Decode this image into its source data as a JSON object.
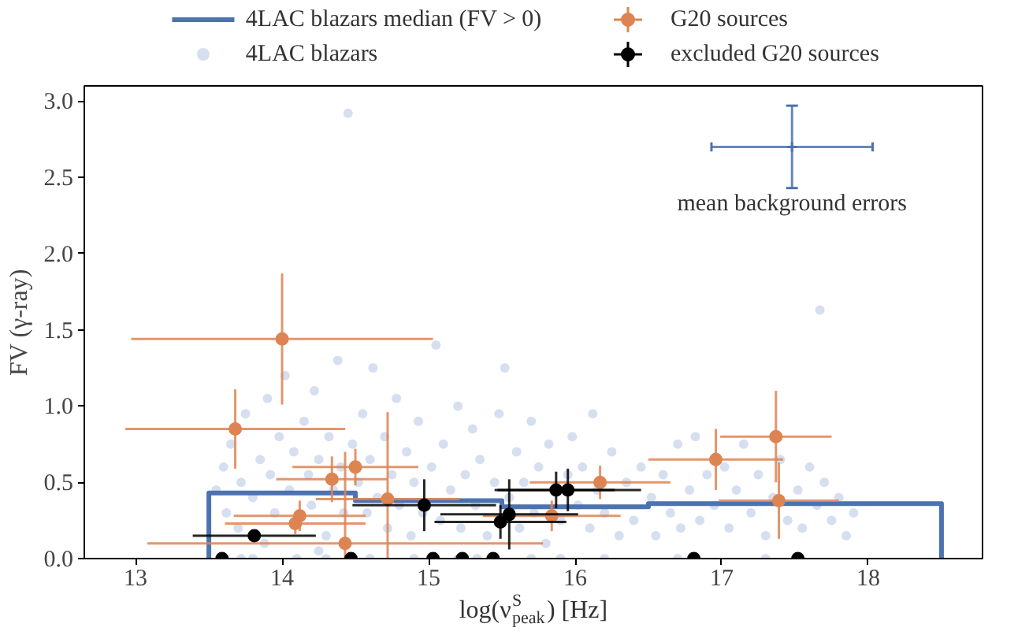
{
  "chart_data": {
    "type": "scatter",
    "xlabel": "log(ν$^{S}$$_{peak}$) [Hz]",
    "ylabel": "FV (γ-ray)",
    "xlim": [
      12.65,
      18.78
    ],
    "ylim": [
      0,
      3.1
    ],
    "xticks": [
      13,
      14,
      15,
      16,
      17,
      18
    ],
    "yticks": [
      {
        "value": 0,
        "label": "0.0"
      },
      {
        "value": 0.5,
        "label": "0.5"
      },
      {
        "value": 1,
        "label": "1.0"
      },
      {
        "value": 1.5,
        "label": "1.5"
      },
      {
        "value": 2,
        "label": "2.0"
      },
      {
        "value": 2.5,
        "label": "2.5"
      },
      {
        "value": 3,
        "label": "3.0"
      }
    ],
    "grid": false,
    "legend": "top",
    "series": [
      {
        "name": "4LAC blazars median (FV > 0)",
        "type": "line",
        "color": "#4c72b0",
        "x": [
          13.5,
          13.5,
          14.5,
          14.5,
          15.5,
          15.5,
          16.5,
          16.5,
          18.5,
          18.5
        ],
        "values": [
          0,
          0.43,
          0.43,
          0.38,
          0.38,
          0.34,
          0.34,
          0.36,
          0.36,
          0
        ]
      },
      {
        "name": "4LAC blazars",
        "marker": "circle",
        "color": "#c8d4ea",
        "x": [
          13.55,
          13.6,
          13.62,
          13.65,
          13.7,
          13.72,
          13.75,
          13.8,
          13.85,
          13.88,
          13.9,
          13.92,
          13.95,
          13.98,
          13.72,
          13.8,
          14.02,
          14.05,
          14.08,
          14.25,
          14.15,
          14.18,
          14.2,
          14.22,
          14.25,
          14.3,
          14.32,
          14.35,
          14.38,
          14.4,
          14.42,
          14.45,
          14.48,
          14.1,
          14.3,
          14.52,
          14.55,
          14.58,
          14.6,
          14.62,
          14.65,
          14.7,
          14.72,
          14.75,
          14.78,
          14.8,
          14.85,
          14.88,
          14.9,
          14.93,
          14.96,
          14.6,
          14.9,
          15.02,
          15.05,
          15.08,
          15.1,
          15.15,
          15.2,
          15.22,
          15.25,
          15.3,
          15.32,
          15.35,
          15.4,
          15.45,
          15.48,
          15.2,
          15.33,
          15.52,
          15.55,
          15.6,
          15.62,
          15.65,
          15.7,
          15.72,
          15.75,
          15.8,
          15.82,
          15.85,
          15.9,
          15.95,
          15.98,
          15.7,
          15.9,
          16.02,
          16.05,
          16.1,
          16.12,
          16.15,
          16.2,
          16.25,
          16.3,
          16.35,
          16.4,
          16.45,
          16.2,
          16.52,
          16.55,
          16.6,
          16.65,
          16.7,
          16.72,
          16.78,
          16.82,
          16.85,
          16.9,
          16.95,
          16.7,
          17.02,
          17.05,
          17.1,
          17.15,
          17.2,
          17.25,
          17.3,
          17.35,
          17.4,
          17.45,
          17.3,
          17.52,
          17.55,
          17.6,
          17.65,
          17.67,
          17.7,
          17.75,
          17.8,
          17.85,
          17.9
        ],
        "values": [
          0.45,
          0.6,
          0.3,
          0.75,
          0.2,
          0.5,
          0.95,
          0.4,
          0.65,
          0.1,
          1.05,
          0.55,
          0.3,
          0.8,
          0,
          0,
          1.2,
          0.45,
          0.7,
          0.05,
          0.9,
          0.55,
          0.35,
          1.1,
          0.65,
          0.15,
          0.8,
          0.45,
          1.3,
          0.6,
          0.3,
          2.92,
          0.75,
          0,
          0,
          0.5,
          0.95,
          0.3,
          0.65,
          1.25,
          0.4,
          0.8,
          0.2,
          0.55,
          1.05,
          0.35,
          0.7,
          0.15,
          0.5,
          0.9,
          0.3,
          0,
          0,
          0.6,
          1.4,
          0.25,
          0.75,
          0.45,
          1.0,
          0.2,
          0.55,
          0.85,
          0.35,
          0.65,
          0.15,
          0.5,
          0.95,
          0,
          0,
          1.25,
          0.4,
          0.7,
          0.2,
          0.5,
          0.9,
          0.3,
          0.6,
          0.1,
          0.75,
          0.45,
          0.25,
          0.55,
          0.8,
          0,
          0,
          0.35,
          0.6,
          0.2,
          0.95,
          0.45,
          0.3,
          0.7,
          0.15,
          0.5,
          0.25,
          0.6,
          0,
          0.4,
          0.15,
          0.55,
          0.3,
          0.75,
          0.2,
          0.45,
          0.8,
          0.25,
          0.55,
          0.35,
          0,
          0.6,
          0.2,
          0.45,
          0.75,
          0.3,
          0.55,
          0.15,
          0.4,
          0.65,
          0.25,
          0,
          0.45,
          0.2,
          0.6,
          0.35,
          1.63,
          0.5,
          0.25,
          0.4,
          0.15,
          0.3
        ]
      },
      {
        "name": "G20 sources",
        "marker": "circle",
        "color": "#dd8452",
        "x": [
          14.0,
          13.68,
          14.5,
          14.34,
          14.72,
          14.12,
          14.09,
          14.43,
          16.17,
          15.84,
          16.96,
          17.37,
          17.39
        ],
        "values": [
          1.44,
          0.85,
          0.6,
          0.52,
          0.39,
          0.28,
          0.23,
          0.1,
          0.5,
          0.28,
          0.65,
          0.8,
          0.38
        ],
        "xerrors": [
          1.03,
          0.75,
          0.43,
          0.38,
          0.49,
          0.45,
          0.48,
          1.35,
          0.48,
          0.47,
          0.46,
          0.38,
          0.41
        ],
        "errors": [
          0.43,
          0.26,
          0.12,
          0.15,
          [
            0,
            0.96
          ],
          0.1,
          0.07,
          [
            0,
            0.7
          ],
          0.11,
          0.1,
          0.2,
          0.3,
          0.25
        ]
      },
      {
        "name": "excluded G20 sources",
        "marker": "circle",
        "color": "#000000",
        "x": [
          13.81,
          14.97,
          15.49,
          15.55,
          15.87,
          15.95,
          13.59,
          14.47,
          15.03,
          15.23,
          15.44,
          16.81,
          17.52
        ],
        "values": [
          0.15,
          0.35,
          0.24,
          0.29,
          0.45,
          0.45,
          0,
          0,
          0,
          0,
          0,
          0,
          0
        ],
        "xerrors": [
          0.42,
          0.49,
          0.45,
          0.47,
          0.4,
          0.5,
          null,
          null,
          null,
          null,
          null,
          null,
          null
        ],
        "errors": [
          0.035,
          0.17,
          0.11,
          0.23,
          0.12,
          0.14,
          null,
          null,
          null,
          null,
          null,
          null,
          null
        ]
      },
      {
        "name": "mean background errors",
        "marker": "cross",
        "color": "#4c72b0",
        "x": [
          17.48
        ],
        "values": [
          2.7
        ],
        "xerrors": [
          0.55
        ],
        "errors": [
          0.27
        ]
      }
    ]
  }
}
